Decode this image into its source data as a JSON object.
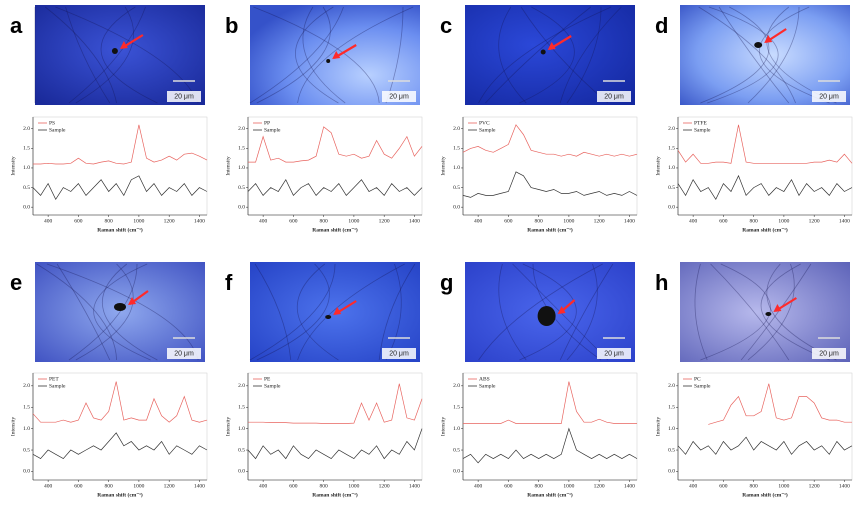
{
  "chart_data": [
    {
      "type": "line",
      "label": "a",
      "scale_label": "20 μm",
      "xlabel": "Raman shift (cm⁻¹)",
      "ylabel": "Intensity",
      "x": [
        300,
        350,
        400,
        450,
        500,
        550,
        600,
        650,
        700,
        750,
        800,
        850,
        900,
        950,
        1000,
        1050,
        1100,
        1150,
        1200,
        1250,
        1300,
        1350,
        1400,
        1450
      ],
      "xlim": [
        300,
        1450
      ],
      "xticks": [
        400,
        600,
        800,
        1000,
        1200,
        1400
      ],
      "ylim": [
        -0.2,
        2.3
      ],
      "yticks": [
        {
          "value": 0,
          "label": "0.0"
        },
        {
          "value": 0.5,
          "label": "0.5"
        },
        {
          "value": 1,
          "label": "1.0"
        },
        {
          "value": 1.5,
          "label": "1.5"
        },
        {
          "value": 2,
          "label": "2.0"
        }
      ],
      "series": [
        {
          "name": "PS",
          "color": "#e8645f",
          "values": [
            1.1,
            1.1,
            1.12,
            1.1,
            1.1,
            1.12,
            1.25,
            1.12,
            1.1,
            1.15,
            1.18,
            1.12,
            1.1,
            1.15,
            2.1,
            1.25,
            1.15,
            1.2,
            1.3,
            1.2,
            1.35,
            1.38,
            1.3,
            1.2
          ]
        },
        {
          "name": "Sample",
          "color": "#333333",
          "values": [
            0.5,
            0.3,
            0.6,
            0.2,
            0.5,
            0.4,
            0.6,
            0.3,
            0.5,
            0.7,
            0.4,
            0.6,
            0.3,
            0.7,
            0.8,
            0.4,
            0.6,
            0.3,
            0.5,
            0.4,
            0.6,
            0.3,
            0.5,
            0.4
          ]
        }
      ]
    },
    {
      "type": "line",
      "label": "b",
      "scale_label": "20 μm",
      "xlabel": "Raman shift (cm⁻¹)",
      "ylabel": "Intensity",
      "x": [
        300,
        350,
        400,
        450,
        500,
        550,
        600,
        650,
        700,
        750,
        800,
        850,
        900,
        950,
        1000,
        1050,
        1100,
        1150,
        1200,
        1250,
        1300,
        1350,
        1400,
        1450
      ],
      "xlim": [
        300,
        1450
      ],
      "xticks": [
        400,
        600,
        800,
        1000,
        1200,
        1400
      ],
      "ylim": [
        -0.2,
        2.3
      ],
      "yticks": [
        {
          "value": 0,
          "label": "0.0"
        },
        {
          "value": 0.5,
          "label": "0.5"
        },
        {
          "value": 1,
          "label": "1.0"
        },
        {
          "value": 1.5,
          "label": "1.5"
        },
        {
          "value": 2,
          "label": "2.0"
        }
      ],
      "series": [
        {
          "name": "PP",
          "color": "#e8645f",
          "values": [
            1.15,
            1.15,
            1.8,
            1.2,
            1.25,
            1.15,
            1.15,
            1.18,
            1.2,
            1.3,
            2.05,
            1.9,
            1.35,
            1.3,
            1.35,
            1.25,
            1.3,
            1.7,
            1.35,
            1.25,
            1.5,
            1.8,
            1.3,
            1.55
          ]
        },
        {
          "name": "Sample",
          "color": "#333333",
          "values": [
            0.4,
            0.6,
            0.3,
            0.5,
            0.4,
            0.7,
            0.3,
            0.5,
            0.6,
            0.3,
            0.5,
            0.4,
            0.6,
            0.3,
            0.5,
            0.7,
            0.4,
            0.5,
            0.3,
            0.6,
            0.4,
            0.5,
            0.3,
            0.5
          ]
        }
      ]
    },
    {
      "type": "line",
      "label": "c",
      "scale_label": "20 μm",
      "xlabel": "Raman shift (cm⁻¹)",
      "ylabel": "Intensity",
      "x": [
        300,
        350,
        400,
        450,
        500,
        550,
        600,
        650,
        700,
        750,
        800,
        850,
        900,
        950,
        1000,
        1050,
        1100,
        1150,
        1200,
        1250,
        1300,
        1350,
        1400,
        1450
      ],
      "xlim": [
        300,
        1450
      ],
      "xticks": [
        400,
        600,
        800,
        1000,
        1200,
        1400
      ],
      "ylim": [
        -0.2,
        2.3
      ],
      "yticks": [
        {
          "value": 0,
          "label": "0.0"
        },
        {
          "value": 0.5,
          "label": "0.5"
        },
        {
          "value": 1,
          "label": "1.0"
        },
        {
          "value": 1.5,
          "label": "1.5"
        },
        {
          "value": 2,
          "label": "2.0"
        }
      ],
      "series": [
        {
          "name": "PVC",
          "color": "#e8645f",
          "values": [
            1.4,
            1.5,
            1.55,
            1.45,
            1.4,
            1.5,
            1.6,
            2.1,
            1.85,
            1.45,
            1.4,
            1.35,
            1.35,
            1.3,
            1.35,
            1.3,
            1.4,
            1.35,
            1.3,
            1.35,
            1.3,
            1.35,
            1.3,
            1.35
          ]
        },
        {
          "name": "Sample",
          "color": "#333333",
          "values": [
            0.3,
            0.25,
            0.35,
            0.3,
            0.3,
            0.35,
            0.4,
            0.9,
            0.8,
            0.5,
            0.45,
            0.4,
            0.45,
            0.35,
            0.35,
            0.4,
            0.3,
            0.35,
            0.4,
            0.3,
            0.35,
            0.3,
            0.4,
            0.3
          ]
        }
      ]
    },
    {
      "type": "line",
      "label": "d",
      "scale_label": "20 μm",
      "xlabel": "Raman shift (cm⁻¹)",
      "ylabel": "Intensity",
      "x": [
        300,
        350,
        400,
        450,
        500,
        550,
        600,
        650,
        700,
        750,
        800,
        850,
        900,
        950,
        1000,
        1050,
        1100,
        1150,
        1200,
        1250,
        1300,
        1350,
        1400,
        1450
      ],
      "xlim": [
        300,
        1450
      ],
      "xticks": [
        400,
        600,
        800,
        1000,
        1200,
        1400
      ],
      "ylim": [
        -0.2,
        2.3
      ],
      "yticks": [
        {
          "value": 0,
          "label": "0.0"
        },
        {
          "value": 0.5,
          "label": "0.5"
        },
        {
          "value": 1,
          "label": "1.0"
        },
        {
          "value": 1.5,
          "label": "1.5"
        },
        {
          "value": 2,
          "label": "2.0"
        }
      ],
      "series": [
        {
          "name": "PTFE",
          "color": "#e8645f",
          "values": [
            1.45,
            1.15,
            1.35,
            1.12,
            1.12,
            1.15,
            1.15,
            1.12,
            2.1,
            1.15,
            1.12,
            1.12,
            1.12,
            1.12,
            1.12,
            1.12,
            1.12,
            1.12,
            1.15,
            1.15,
            1.2,
            1.15,
            1.35,
            1.12
          ]
        },
        {
          "name": "Sample",
          "color": "#333333",
          "values": [
            0.6,
            0.3,
            0.7,
            0.4,
            0.5,
            0.2,
            0.6,
            0.4,
            0.8,
            0.3,
            0.5,
            0.6,
            0.3,
            0.5,
            0.4,
            0.7,
            0.3,
            0.6,
            0.4,
            0.5,
            0.3,
            0.6,
            0.4,
            0.5
          ]
        }
      ]
    },
    {
      "type": "line",
      "label": "e",
      "scale_label": "20 μm",
      "xlabel": "Raman shift (cm⁻¹)",
      "ylabel": "Intensity",
      "x": [
        300,
        350,
        400,
        450,
        500,
        550,
        600,
        650,
        700,
        750,
        800,
        850,
        900,
        950,
        1000,
        1050,
        1100,
        1150,
        1200,
        1250,
        1300,
        1350,
        1400,
        1450
      ],
      "xlim": [
        300,
        1450
      ],
      "xticks": [
        400,
        600,
        800,
        1000,
        1200,
        1400
      ],
      "ylim": [
        -0.2,
        2.3
      ],
      "yticks": [
        {
          "value": 0,
          "label": "0.0"
        },
        {
          "value": 0.5,
          "label": "0.5"
        },
        {
          "value": 1,
          "label": "1.0"
        },
        {
          "value": 1.5,
          "label": "1.5"
        },
        {
          "value": 2,
          "label": "2.0"
        }
      ],
      "series": [
        {
          "name": "PET",
          "color": "#e8645f",
          "values": [
            1.35,
            1.15,
            1.15,
            1.15,
            1.2,
            1.15,
            1.2,
            1.6,
            1.25,
            1.2,
            1.4,
            2.1,
            1.2,
            1.25,
            1.2,
            1.2,
            1.7,
            1.3,
            1.15,
            1.3,
            1.75,
            1.2,
            1.15,
            1.2
          ]
        },
        {
          "name": "Sample",
          "color": "#333333",
          "values": [
            0.4,
            0.3,
            0.5,
            0.4,
            0.3,
            0.5,
            0.4,
            0.5,
            0.6,
            0.5,
            0.7,
            0.9,
            0.6,
            0.7,
            0.5,
            0.6,
            0.5,
            0.7,
            0.4,
            0.6,
            0.5,
            0.4,
            0.6,
            0.5
          ]
        }
      ]
    },
    {
      "type": "line",
      "label": "f",
      "scale_label": "20 μm",
      "xlabel": "Raman shift (cm⁻¹)",
      "ylabel": "Intensity",
      "x": [
        300,
        350,
        400,
        450,
        500,
        550,
        600,
        650,
        700,
        750,
        800,
        850,
        900,
        950,
        1000,
        1050,
        1100,
        1150,
        1200,
        1250,
        1300,
        1350,
        1400,
        1450
      ],
      "xlim": [
        300,
        1450
      ],
      "xticks": [
        400,
        600,
        800,
        1000,
        1200,
        1400
      ],
      "ylim": [
        -0.2,
        2.3
      ],
      "yticks": [
        {
          "value": 0,
          "label": "0.0"
        },
        {
          "value": 0.5,
          "label": "0.5"
        },
        {
          "value": 1,
          "label": "1.0"
        },
        {
          "value": 1.5,
          "label": "1.5"
        },
        {
          "value": 2,
          "label": "2.0"
        }
      ],
      "series": [
        {
          "name": "PE",
          "color": "#e8645f",
          "values": [
            1.15,
            1.15,
            1.15,
            1.14,
            1.14,
            1.14,
            1.13,
            1.13,
            1.13,
            1.13,
            1.12,
            1.12,
            1.12,
            1.12,
            1.13,
            1.6,
            1.2,
            1.6,
            1.15,
            1.2,
            2.05,
            1.25,
            1.2,
            1.7
          ]
        },
        {
          "name": "Sample",
          "color": "#333333",
          "values": [
            0.5,
            0.3,
            0.6,
            0.4,
            0.5,
            0.3,
            0.6,
            0.4,
            0.3,
            0.5,
            0.4,
            0.3,
            0.5,
            0.4,
            0.3,
            0.5,
            0.4,
            0.6,
            0.3,
            0.5,
            0.4,
            0.7,
            0.5,
            1.0
          ]
        }
      ]
    },
    {
      "type": "line",
      "label": "g",
      "scale_label": "20 μm",
      "xlabel": "Raman shift (cm⁻¹)",
      "ylabel": "Intensity",
      "x": [
        300,
        350,
        400,
        450,
        500,
        550,
        600,
        650,
        700,
        750,
        800,
        850,
        900,
        950,
        1000,
        1050,
        1100,
        1150,
        1200,
        1250,
        1300,
        1350,
        1400,
        1450
      ],
      "xlim": [
        300,
        1450
      ],
      "xticks": [
        400,
        600,
        800,
        1000,
        1200,
        1400
      ],
      "ylim": [
        -0.2,
        2.3
      ],
      "yticks": [
        {
          "value": 0,
          "label": "0.0"
        },
        {
          "value": 0.5,
          "label": "0.5"
        },
        {
          "value": 1,
          "label": "1.0"
        },
        {
          "value": 1.5,
          "label": "1.5"
        },
        {
          "value": 2,
          "label": "2.0"
        }
      ],
      "series": [
        {
          "name": "ABS",
          "color": "#e8645f",
          "values": [
            1.12,
            1.12,
            1.12,
            1.12,
            1.12,
            1.12,
            1.2,
            1.12,
            1.12,
            1.12,
            1.12,
            1.12,
            1.12,
            1.12,
            2.1,
            1.4,
            1.15,
            1.15,
            1.22,
            1.15,
            1.12,
            1.12,
            1.12,
            1.12
          ]
        },
        {
          "name": "Sample",
          "color": "#333333",
          "values": [
            0.3,
            0.4,
            0.2,
            0.4,
            0.3,
            0.4,
            0.3,
            0.5,
            0.3,
            0.4,
            0.3,
            0.4,
            0.3,
            0.4,
            1.0,
            0.5,
            0.4,
            0.3,
            0.4,
            0.3,
            0.4,
            0.3,
            0.4,
            0.3
          ]
        }
      ]
    },
    {
      "type": "line",
      "label": "h",
      "scale_label": "20 μm",
      "xlabel": "Raman shift (cm⁻¹)",
      "ylabel": "Intensity",
      "x": [
        300,
        350,
        400,
        450,
        500,
        550,
        600,
        650,
        700,
        750,
        800,
        850,
        900,
        950,
        1000,
        1050,
        1100,
        1150,
        1200,
        1250,
        1300,
        1350,
        1400,
        1450
      ],
      "xlim": [
        300,
        1450
      ],
      "xticks": [
        400,
        600,
        800,
        1000,
        1200,
        1400
      ],
      "ylim": [
        -0.2,
        2.3
      ],
      "yticks": [
        {
          "value": 0,
          "label": "0.0"
        },
        {
          "value": 0.5,
          "label": "0.5"
        },
        {
          "value": 1,
          "label": "1.0"
        },
        {
          "value": 1.5,
          "label": "1.5"
        },
        {
          "value": 2,
          "label": "2.0"
        }
      ],
      "series": [
        {
          "name": "PC",
          "color": "#e8645f",
          "values": [
            null,
            null,
            null,
            null,
            1.1,
            1.15,
            1.2,
            1.55,
            1.75,
            1.3,
            1.3,
            1.4,
            2.05,
            1.25,
            1.2,
            1.25,
            1.75,
            1.75,
            1.6,
            1.25,
            1.2,
            1.2,
            1.15,
            1.15
          ]
        },
        {
          "name": "Sample",
          "color": "#333333",
          "values": [
            0.6,
            0.4,
            0.7,
            0.5,
            0.6,
            0.4,
            0.7,
            0.5,
            0.6,
            0.8,
            0.5,
            0.7,
            0.6,
            0.5,
            0.7,
            0.4,
            0.6,
            0.7,
            0.5,
            0.6,
            0.4,
            0.7,
            0.5,
            0.6
          ]
        }
      ]
    }
  ]
}
